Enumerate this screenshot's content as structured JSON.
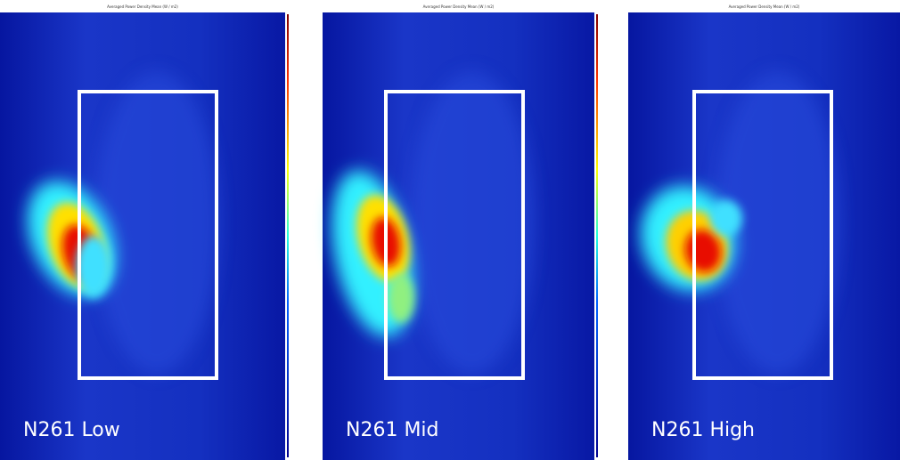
{
  "panels": [
    {
      "title": "Averaged Power Density Mean (W / m2)",
      "label": "N261 Low"
    },
    {
      "title": "Averaged Power Density Mean (W / m2)",
      "label": "N261 Mid"
    },
    {
      "title": "Averaged Power Density Mean (W / m2)",
      "label": "N261 High"
    }
  ]
}
